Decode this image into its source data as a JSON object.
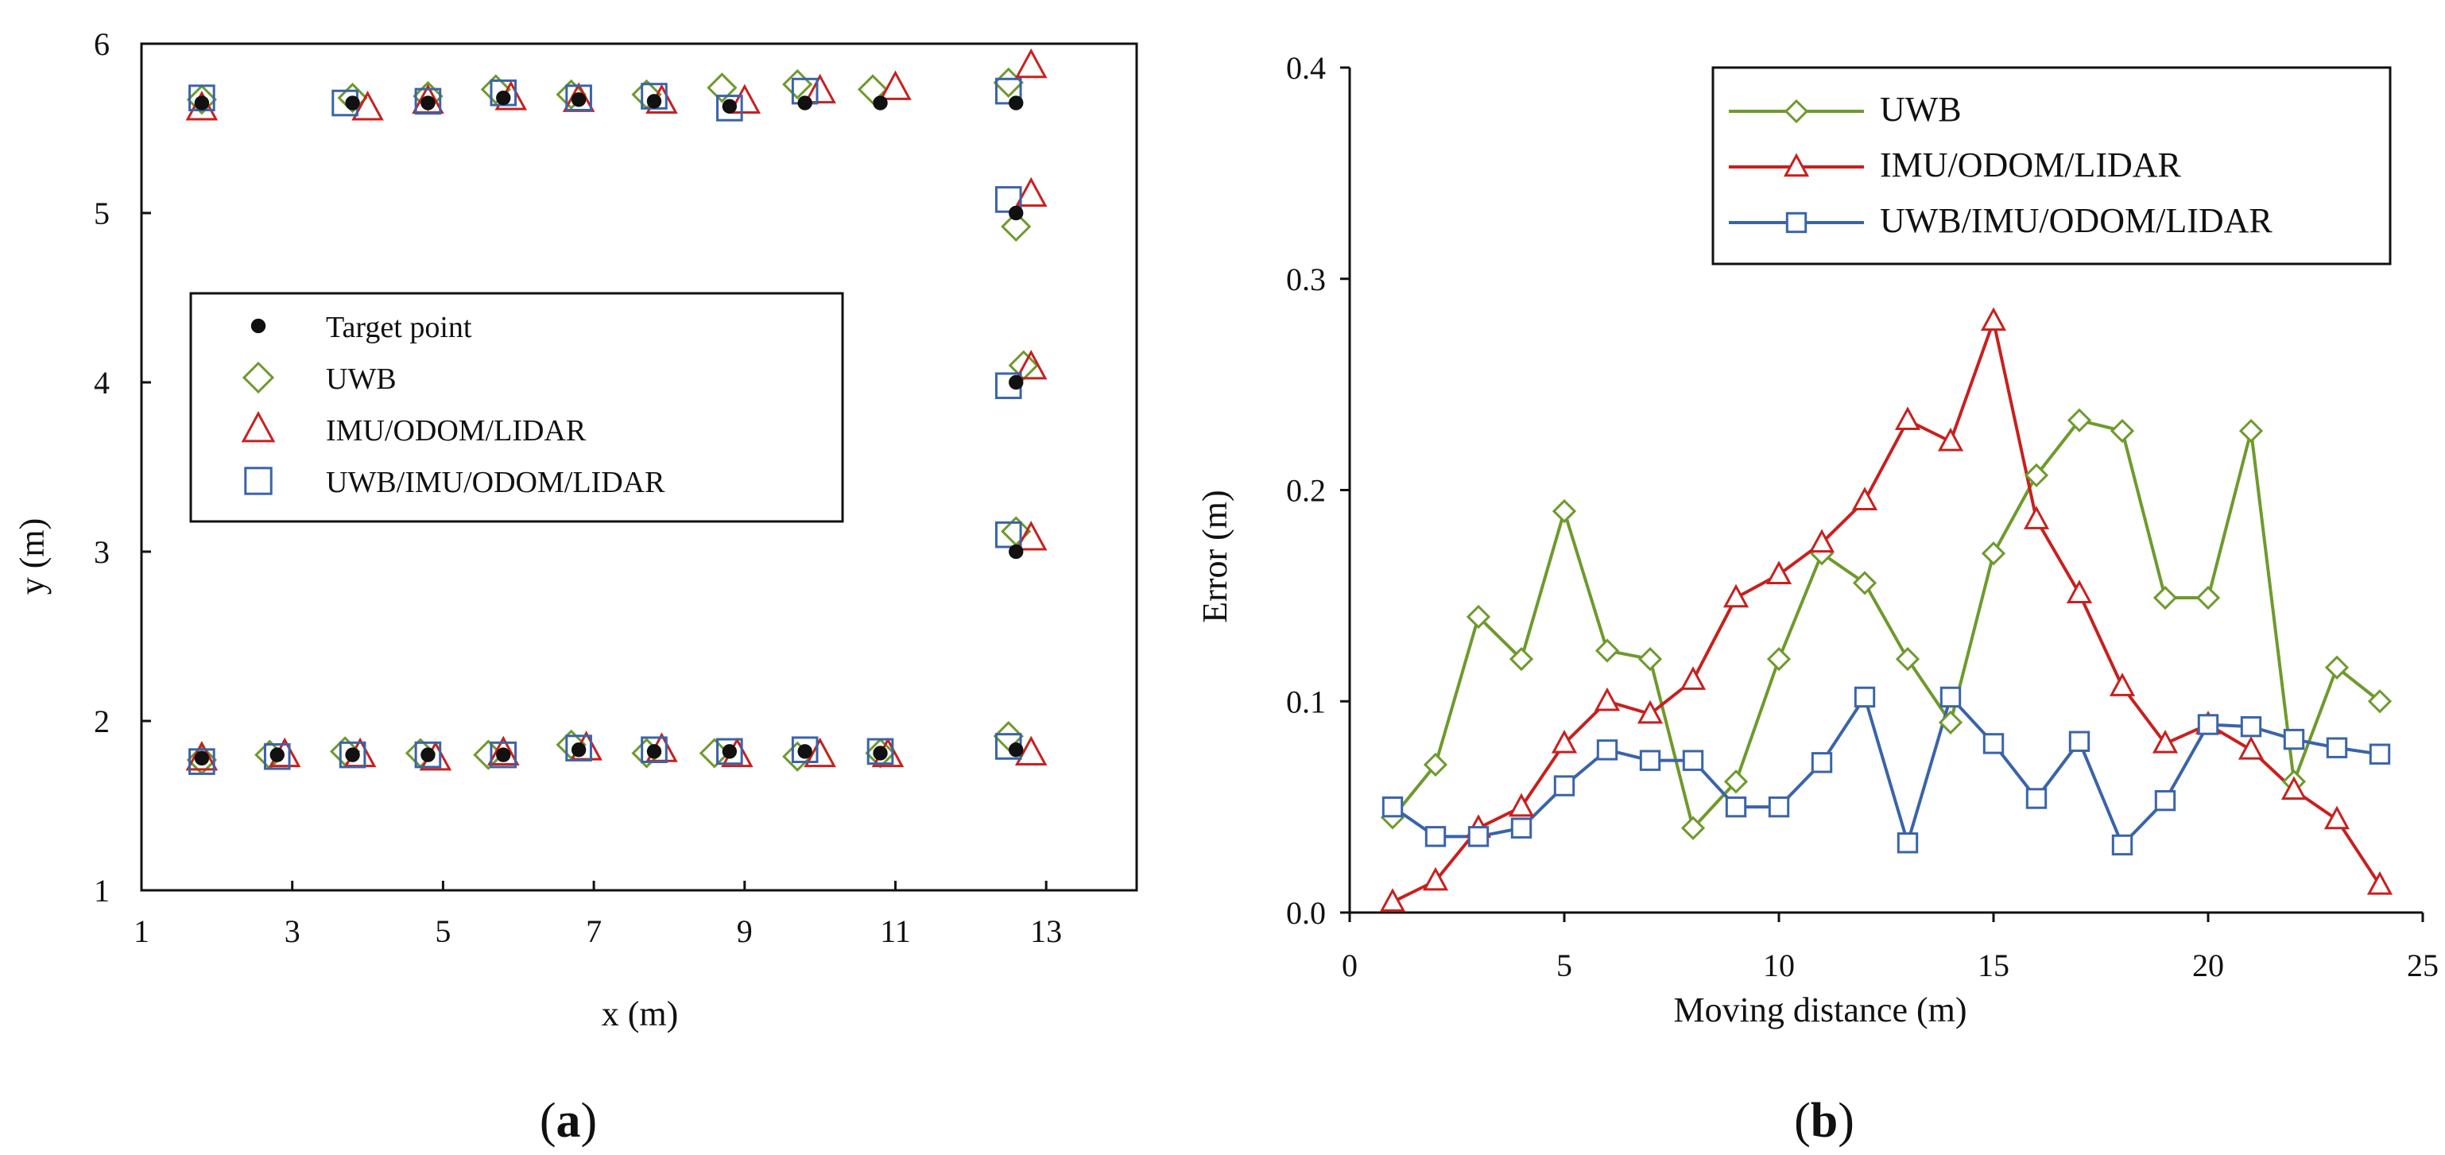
{
  "chart_data": [
    {
      "type": "scatter",
      "panel_label": "(a)",
      "panel_letter": "a",
      "xlabel": "x (m)",
      "ylabel": "y (m)",
      "xlim": [
        1,
        14.2
      ],
      "ylim": [
        1,
        6
      ],
      "xticks": [
        1,
        3,
        5,
        7,
        9,
        11,
        13
      ],
      "yticks": [
        1,
        2,
        3,
        4,
        5,
        6
      ],
      "legend": {
        "position": "center-left",
        "entries": [
          "Target point",
          "UWB",
          "IMU/ODOM/LIDAR",
          "UWB/IMU/ODOM/LIDAR"
        ]
      },
      "series": [
        {
          "name": "Target point",
          "marker": "circle",
          "color": "#111111",
          "points": [
            [
              1.8,
              5.65
            ],
            [
              3.8,
              5.65
            ],
            [
              4.8,
              5.65
            ],
            [
              5.8,
              5.68
            ],
            [
              6.8,
              5.67
            ],
            [
              7.8,
              5.66
            ],
            [
              8.8,
              5.63
            ],
            [
              9.8,
              5.65
            ],
            [
              10.8,
              5.65
            ],
            [
              12.6,
              5.65
            ],
            [
              12.6,
              5.0
            ],
            [
              12.6,
              4.0
            ],
            [
              12.6,
              3.0
            ],
            [
              1.8,
              1.78
            ],
            [
              2.8,
              1.8
            ],
            [
              3.8,
              1.8
            ],
            [
              4.8,
              1.8
            ],
            [
              5.8,
              1.8
            ],
            [
              6.8,
              1.83
            ],
            [
              7.8,
              1.82
            ],
            [
              8.8,
              1.82
            ],
            [
              9.8,
              1.82
            ],
            [
              10.8,
              1.81
            ],
            [
              12.6,
              1.83
            ]
          ]
        },
        {
          "name": "UWB",
          "marker": "diamond",
          "color": "#6e9a2c",
          "points": [
            [
              1.8,
              5.67
            ],
            [
              3.8,
              5.68
            ],
            [
              4.8,
              5.69
            ],
            [
              5.7,
              5.73
            ],
            [
              6.7,
              5.7
            ],
            [
              7.7,
              5.7
            ],
            [
              8.7,
              5.74
            ],
            [
              9.7,
              5.76
            ],
            [
              10.7,
              5.73
            ],
            [
              12.5,
              5.77
            ],
            [
              12.6,
              4.92
            ],
            [
              12.7,
              4.1
            ],
            [
              12.6,
              3.12
            ],
            [
              1.8,
              1.77
            ],
            [
              2.7,
              1.8
            ],
            [
              3.7,
              1.82
            ],
            [
              4.7,
              1.81
            ],
            [
              5.6,
              1.8
            ],
            [
              6.7,
              1.86
            ],
            [
              7.7,
              1.81
            ],
            [
              8.6,
              1.81
            ],
            [
              9.7,
              1.79
            ],
            [
              10.8,
              1.81
            ],
            [
              12.5,
              1.91
            ]
          ]
        },
        {
          "name": "IMU/ODOM/LIDAR",
          "marker": "triangle",
          "color": "#c8201e",
          "points": [
            [
              1.8,
              5.62
            ],
            [
              4.0,
              5.62
            ],
            [
              4.8,
              5.66
            ],
            [
              5.9,
              5.68
            ],
            [
              6.8,
              5.67
            ],
            [
              7.9,
              5.66
            ],
            [
              9.0,
              5.66
            ],
            [
              10.0,
              5.72
            ],
            [
              11.0,
              5.74
            ],
            [
              12.8,
              5.87
            ],
            [
              12.8,
              5.11
            ],
            [
              12.8,
              4.09
            ],
            [
              12.8,
              3.08
            ],
            [
              1.8,
              1.78
            ],
            [
              2.9,
              1.8
            ],
            [
              3.9,
              1.8
            ],
            [
              4.9,
              1.78
            ],
            [
              5.8,
              1.81
            ],
            [
              6.9,
              1.84
            ],
            [
              7.9,
              1.83
            ],
            [
              8.9,
              1.8
            ],
            [
              10.0,
              1.8
            ],
            [
              10.9,
              1.8
            ],
            [
              12.8,
              1.81
            ]
          ]
        },
        {
          "name": "UWB/IMU/ODOM/LIDAR",
          "marker": "square",
          "color": "#3a64a8",
          "points": [
            [
              1.8,
              5.68
            ],
            [
              3.7,
              5.65
            ],
            [
              4.8,
              5.66
            ],
            [
              5.8,
              5.71
            ],
            [
              6.8,
              5.68
            ],
            [
              7.8,
              5.69
            ],
            [
              8.8,
              5.62
            ],
            [
              9.8,
              5.72
            ],
            [
              12.5,
              5.72
            ],
            [
              12.5,
              5.08
            ],
            [
              12.5,
              3.98
            ],
            [
              12.5,
              3.1
            ],
            [
              1.8,
              1.76
            ],
            [
              2.8,
              1.79
            ],
            [
              3.8,
              1.8
            ],
            [
              4.8,
              1.8
            ],
            [
              5.8,
              1.8
            ],
            [
              6.8,
              1.84
            ],
            [
              7.8,
              1.83
            ],
            [
              8.8,
              1.82
            ],
            [
              9.8,
              1.83
            ],
            [
              10.8,
              1.82
            ],
            [
              12.5,
              1.85
            ]
          ]
        }
      ]
    },
    {
      "type": "line",
      "panel_label": "(b)",
      "panel_letter": "b",
      "xlabel": "Moving distance (m)",
      "ylabel": "Error (m)",
      "xlim": [
        0,
        25
      ],
      "ylim": [
        0,
        0.4
      ],
      "xticks": [
        0,
        5,
        10,
        15,
        20,
        25
      ],
      "yticks": [
        "0.0",
        "0.1",
        "0.2",
        "0.3",
        "0.4"
      ],
      "x": [
        1,
        2,
        3,
        4,
        5,
        6,
        7,
        8,
        9,
        10,
        11,
        12,
        13,
        14,
        15,
        16,
        17,
        18,
        19,
        20,
        21,
        22,
        23,
        24
      ],
      "legend": {
        "position": "top-right",
        "entries": [
          "UWB",
          "IMU/ODOM/LIDAR",
          "UWB/IMU/ODOM/LIDAR"
        ]
      },
      "series": [
        {
          "name": "UWB",
          "marker": "diamond",
          "color": "#6e9a2c",
          "values": [
            0.045,
            0.07,
            0.14,
            0.12,
            0.19,
            0.124,
            0.12,
            0.04,
            0.062,
            0.12,
            0.17,
            0.156,
            0.12,
            0.09,
            0.17,
            0.207,
            0.233,
            0.228,
            0.149,
            0.149,
            0.228,
            0.062,
            0.116,
            0.1
          ]
        },
        {
          "name": "IMU/ODOM/LIDAR",
          "marker": "triangle",
          "color": "#c8201e",
          "values": [
            0.005,
            0.015,
            0.04,
            0.05,
            0.08,
            0.1,
            0.094,
            0.11,
            0.149,
            0.16,
            0.175,
            0.195,
            0.233,
            0.223,
            0.28,
            0.186,
            0.151,
            0.107,
            0.08,
            0.089,
            0.077,
            0.058,
            0.044,
            0.013
          ]
        },
        {
          "name": "UWB/IMU/ODOM/LIDAR",
          "marker": "square",
          "color": "#3a64a8",
          "values": [
            0.05,
            0.036,
            0.036,
            0.04,
            0.06,
            0.077,
            0.072,
            0.072,
            0.05,
            0.05,
            0.071,
            0.102,
            0.033,
            0.102,
            0.08,
            0.054,
            0.081,
            0.032,
            0.053,
            0.089,
            0.088,
            0.082,
            0.078,
            0.075
          ]
        }
      ]
    }
  ]
}
